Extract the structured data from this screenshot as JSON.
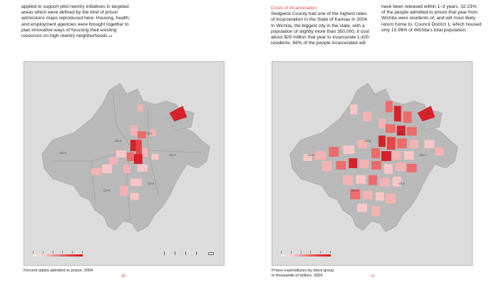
{
  "left_page": {
    "body_text": "applied to support pilot reentry initiatives in targeted areas which were defined by the kind of prison admissions maps reproduced here. Housing, health, and employment agencies were brought together to plan innovative ways of focusing their existing resources on high-reentry neighborhoods.",
    "footnote_ref": "13",
    "map_caption": "Percent adults admitted to prison, 2004",
    "page_number": "20",
    "district_labels": [
      "CD 1",
      "CD 2",
      "CD 3",
      "CD 4",
      "CD 5",
      "CD 6"
    ]
  },
  "right_page": {
    "section_title": "Costs of Incarceration",
    "column1_text": "Sedgwick County had one of the highest rates of incarceration in the State of Kansas in 2004. In Wichita, the biggest city in the state, with a population of slightly more than 350,000, it cost about $29 million that year to incarcerate 1,420 residents. 68% of the people incarcerated will",
    "column2_text": "have been released within 1–3 years. 32.23% of the people admitted to prison that year from Wichita were residents of, and will most likely return home to, Council District 1, which housed only 15.99% of Wichita's total population.",
    "map_caption_line1": "Prison expenditures by block group",
    "map_caption_line2": "in thousands of dollars, 2004",
    "page_number": "21",
    "district_labels": [
      "CD 1",
      "CD 2",
      "CD 3",
      "CD 4",
      "CD 5",
      "CD 6"
    ]
  },
  "colors": {
    "accent": "#e0463b",
    "map_background": "#dcdcdc",
    "city_gray": "#b8b8b8",
    "light_red": "#f4b3b3",
    "mid_red": "#ec6b6b",
    "dark_red": "#d6222a"
  }
}
